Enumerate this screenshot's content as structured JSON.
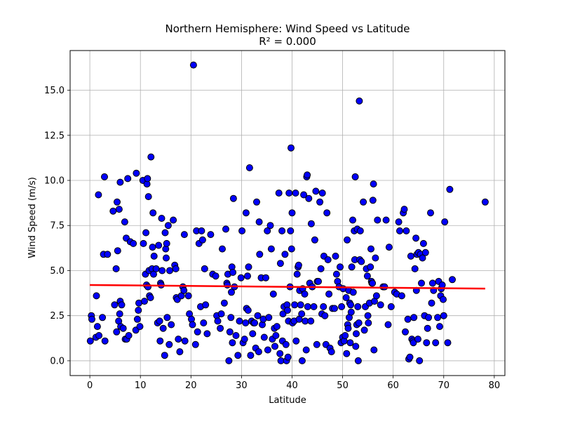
{
  "chart_data": {
    "type": "scatter",
    "title": "Northern Hemisphere: Wind Speed vs Latitude",
    "subtitle": "R² = 0.000",
    "xlabel": "Latitude",
    "ylabel": "Wind Speed (m/s)",
    "xlim": [
      -3.9,
      82.1
    ],
    "ylim": [
      -0.82,
      17.2
    ],
    "xticks": [
      0,
      10,
      20,
      30,
      40,
      50,
      60,
      70,
      80
    ],
    "xtick_labels": [
      "0",
      "10",
      "20",
      "30",
      "40",
      "50",
      "60",
      "70",
      "80"
    ],
    "yticks": [
      0,
      2.5,
      5,
      7.5,
      10,
      12.5,
      15
    ],
    "ytick_labels": [
      "0.0",
      "2.5",
      "5.0",
      "7.5",
      "10.0",
      "12.5",
      "15.0"
    ],
    "grid": true,
    "colors": {
      "marker_fill": "#0000ff",
      "marker_edge": "#000000",
      "regression": "#ff0000",
      "grid": "#b0b0b0"
    },
    "regression": {
      "x": [
        0.0,
        78.2
      ],
      "y": [
        4.2,
        4.0
      ]
    },
    "points": [
      [
        0.1,
        1.1
      ],
      [
        0.3,
        2.5
      ],
      [
        0.4,
        2.3
      ],
      [
        1.2,
        1.3
      ],
      [
        1.3,
        3.6
      ],
      [
        1.5,
        1.9
      ],
      [
        1.7,
        9.2
      ],
      [
        1.8,
        1.4
      ],
      [
        2.5,
        2.4
      ],
      [
        2.7,
        5.9
      ],
      [
        2.9,
        10.2
      ],
      [
        3.0,
        1.1
      ],
      [
        3.5,
        5.9
      ],
      [
        4.6,
        8.3
      ],
      [
        4.9,
        3.1
      ],
      [
        5.2,
        5.1
      ],
      [
        5.3,
        1.6
      ],
      [
        5.4,
        8.8
      ],
      [
        5.5,
        6.1
      ],
      [
        5.7,
        2.2
      ],
      [
        5.8,
        8.4
      ],
      [
        5.9,
        2.6
      ],
      [
        6.0,
        3.3
      ],
      [
        6.0,
        9.9
      ],
      [
        6.1,
        1.9
      ],
      [
        6.3,
        3.1
      ],
      [
        6.6,
        1.8
      ],
      [
        6.9,
        7.7
      ],
      [
        7.0,
        1.2
      ],
      [
        7.2,
        6.8
      ],
      [
        7.3,
        1.2
      ],
      [
        7.5,
        10.1
      ],
      [
        7.7,
        1.4
      ],
      [
        8.0,
        6.6
      ],
      [
        8.6,
        6.5
      ],
      [
        9.1,
        1.7
      ],
      [
        9.2,
        10.4
      ],
      [
        9.4,
        2.3
      ],
      [
        9.6,
        2.8
      ],
      [
        9.7,
        3.2
      ],
      [
        9.9,
        1.9
      ],
      [
        10.5,
        10.0
      ],
      [
        10.6,
        6.5
      ],
      [
        10.8,
        3.3
      ],
      [
        11.0,
        4.8
      ],
      [
        11.1,
        7.1
      ],
      [
        11.2,
        4.2
      ],
      [
        11.3,
        9.8
      ],
      [
        11.4,
        10.1
      ],
      [
        11.5,
        4.1
      ],
      [
        11.6,
        9.1
      ],
      [
        11.7,
        5.0
      ],
      [
        11.8,
        3.6
      ],
      [
        12.0,
        3.5
      ],
      [
        12.1,
        11.3
      ],
      [
        12.3,
        5.1
      ],
      [
        12.4,
        6.3
      ],
      [
        12.5,
        8.2
      ],
      [
        12.6,
        4.8
      ],
      [
        12.7,
        5.8
      ],
      [
        13.1,
        5.1
      ],
      [
        13.4,
        2.1
      ],
      [
        13.6,
        6.4
      ],
      [
        13.8,
        2.2
      ],
      [
        13.9,
        1.1
      ],
      [
        14.0,
        4.3
      ],
      [
        14.1,
        4.2
      ],
      [
        14.2,
        7.9
      ],
      [
        14.3,
        5.0
      ],
      [
        14.5,
        1.8
      ],
      [
        14.8,
        0.3
      ],
      [
        14.9,
        7.1
      ],
      [
        15.0,
        6.2
      ],
      [
        15.1,
        5.7
      ],
      [
        15.2,
        6.5
      ],
      [
        15.3,
        2.4
      ],
      [
        15.5,
        7.5
      ],
      [
        15.7,
        0.9
      ],
      [
        15.8,
        5.0
      ],
      [
        16.1,
        2.0
      ],
      [
        16.5,
        7.8
      ],
      [
        16.8,
        5.3
      ],
      [
        17.0,
        5.1
      ],
      [
        17.1,
        3.5
      ],
      [
        17.3,
        3.4
      ],
      [
        17.5,
        1.2
      ],
      [
        17.8,
        0.5
      ],
      [
        18.1,
        3.6
      ],
      [
        18.4,
        4.1
      ],
      [
        18.6,
        3.9
      ],
      [
        18.7,
        7.0
      ],
      [
        18.8,
        1.1
      ],
      [
        19.5,
        3.6
      ],
      [
        19.7,
        2.6
      ],
      [
        20.1,
        2.3
      ],
      [
        20.3,
        2.0
      ],
      [
        20.5,
        16.4
      ],
      [
        20.9,
        0.9
      ],
      [
        21.1,
        7.2
      ],
      [
        21.3,
        1.6
      ],
      [
        21.6,
        6.5
      ],
      [
        21.9,
        3.0
      ],
      [
        22.1,
        7.2
      ],
      [
        22.3,
        6.7
      ],
      [
        22.5,
        2.1
      ],
      [
        22.7,
        5.1
      ],
      [
        22.9,
        3.1
      ],
      [
        23.2,
        1.5
      ],
      [
        23.9,
        7.0
      ],
      [
        24.3,
        4.8
      ],
      [
        24.9,
        4.7
      ],
      [
        25.1,
        2.5
      ],
      [
        25.3,
        2.2
      ],
      [
        25.8,
        1.8
      ],
      [
        26.0,
        2.6
      ],
      [
        26.2,
        6.2
      ],
      [
        26.6,
        3.2
      ],
      [
        26.9,
        7.3
      ],
      [
        27.1,
        4.3
      ],
      [
        27.2,
        4.2
      ],
      [
        27.3,
        4.8
      ],
      [
        27.5,
        0.0
      ],
      [
        27.7,
        1.6
      ],
      [
        27.9,
        2.4
      ],
      [
        28.0,
        3.8
      ],
      [
        28.1,
        5.2
      ],
      [
        28.2,
        1.0
      ],
      [
        28.3,
        4.9
      ],
      [
        28.4,
        9.0
      ],
      [
        28.6,
        4.1
      ],
      [
        28.9,
        1.4
      ],
      [
        29.3,
        0.3
      ],
      [
        29.6,
        2.2
      ],
      [
        29.9,
        4.6
      ],
      [
        30.1,
        7.2
      ],
      [
        30.3,
        1.0
      ],
      [
        30.6,
        1.2
      ],
      [
        30.8,
        2.1
      ],
      [
        30.9,
        8.2
      ],
      [
        31.0,
        2.9
      ],
      [
        31.2,
        4.7
      ],
      [
        31.3,
        2.8
      ],
      [
        31.4,
        5.2
      ],
      [
        31.6,
        10.7
      ],
      [
        31.8,
        0.3
      ],
      [
        32.0,
        2.2
      ],
      [
        32.2,
        1.5
      ],
      [
        32.4,
        2.1
      ],
      [
        32.6,
        2.1
      ],
      [
        32.8,
        0.7
      ],
      [
        33.0,
        8.8
      ],
      [
        33.2,
        2.5
      ],
      [
        33.4,
        0.5
      ],
      [
        33.5,
        7.7
      ],
      [
        33.6,
        5.9
      ],
      [
        33.9,
        4.6
      ],
      [
        34.1,
        2.0
      ],
      [
        34.3,
        2.3
      ],
      [
        34.5,
        1.3
      ],
      [
        34.8,
        4.6
      ],
      [
        35.1,
        7.2
      ],
      [
        35.2,
        0.6
      ],
      [
        35.4,
        2.4
      ],
      [
        35.7,
        7.5
      ],
      [
        35.9,
        6.2
      ],
      [
        36.1,
        1.2
      ],
      [
        36.3,
        3.7
      ],
      [
        36.5,
        1.8
      ],
      [
        36.6,
        0.8
      ],
      [
        36.8,
        1.4
      ],
      [
        37.0,
        1.9
      ],
      [
        37.4,
        9.3
      ],
      [
        37.6,
        0.4
      ],
      [
        37.7,
        5.4
      ],
      [
        37.8,
        0.0
      ],
      [
        38.0,
        7.2
      ],
      [
        38.1,
        1.1
      ],
      [
        38.2,
        2.6
      ],
      [
        38.4,
        3.0
      ],
      [
        38.6,
        5.9
      ],
      [
        38.8,
        0.9
      ],
      [
        38.9,
        0.0
      ],
      [
        39.0,
        3.1
      ],
      [
        39.1,
        2.8
      ],
      [
        39.2,
        0.2
      ],
      [
        39.3,
        2.2
      ],
      [
        39.4,
        9.3
      ],
      [
        39.6,
        4.1
      ],
      [
        39.7,
        7.2
      ],
      [
        39.8,
        11.8
      ],
      [
        39.9,
        6.2
      ],
      [
        40.0,
        8.2
      ],
      [
        40.1,
        2.1
      ],
      [
        40.4,
        2.2
      ],
      [
        40.5,
        3.1
      ],
      [
        40.7,
        9.3
      ],
      [
        40.8,
        1.1
      ],
      [
        41.0,
        4.8
      ],
      [
        41.2,
        5.2
      ],
      [
        41.3,
        5.3
      ],
      [
        41.4,
        2.3
      ],
      [
        41.5,
        3.9
      ],
      [
        41.7,
        3.1
      ],
      [
        41.9,
        2.6
      ],
      [
        42.0,
        0.0
      ],
      [
        42.1,
        4.0
      ],
      [
        42.3,
        9.2
      ],
      [
        42.5,
        3.7
      ],
      [
        42.6,
        2.2
      ],
      [
        42.8,
        0.6
      ],
      [
        42.9,
        10.2
      ],
      [
        43.0,
        10.3
      ],
      [
        43.1,
        3.0
      ],
      [
        43.3,
        9.0
      ],
      [
        43.5,
        4.3
      ],
      [
        43.7,
        2.2
      ],
      [
        43.8,
        7.6
      ],
      [
        44.0,
        4.1
      ],
      [
        44.3,
        3.0
      ],
      [
        44.5,
        6.7
      ],
      [
        44.7,
        9.4
      ],
      [
        44.9,
        0.9
      ],
      [
        45.0,
        4.4
      ],
      [
        45.2,
        4.4
      ],
      [
        45.5,
        8.8
      ],
      [
        45.7,
        5.1
      ],
      [
        45.9,
        2.6
      ],
      [
        46.0,
        9.3
      ],
      [
        46.2,
        3.0
      ],
      [
        46.3,
        5.8
      ],
      [
        46.5,
        2.5
      ],
      [
        46.7,
        0.9
      ],
      [
        46.9,
        8.2
      ],
      [
        47.1,
        5.6
      ],
      [
        47.3,
        3.7
      ],
      [
        47.5,
        0.7
      ],
      [
        47.8,
        0.5
      ],
      [
        48.0,
        2.9
      ],
      [
        48.4,
        2.9
      ],
      [
        48.6,
        5.8
      ],
      [
        48.8,
        4.8
      ],
      [
        49.0,
        4.4
      ],
      [
        49.3,
        4.1
      ],
      [
        49.5,
        5.2
      ],
      [
        49.7,
        1.0
      ],
      [
        49.8,
        3.0
      ],
      [
        50.0,
        1.3
      ],
      [
        50.1,
        4.0
      ],
      [
        50.3,
        1.1
      ],
      [
        50.5,
        1.4
      ],
      [
        50.7,
        3.5
      ],
      [
        50.8,
        0.4
      ],
      [
        50.9,
        6.7
      ],
      [
        51.0,
        2.0
      ],
      [
        51.1,
        1.8
      ],
      [
        51.2,
        3.9
      ],
      [
        51.3,
        2.4
      ],
      [
        51.4,
        3.2
      ],
      [
        51.5,
        1.0
      ],
      [
        51.6,
        3.1
      ],
      [
        51.7,
        2.7
      ],
      [
        51.8,
        5.2
      ],
      [
        52.0,
        7.8
      ],
      [
        52.1,
        3.8
      ],
      [
        52.3,
        7.2
      ],
      [
        52.4,
        5.6
      ],
      [
        52.5,
        10.2
      ],
      [
        52.6,
        0.8
      ],
      [
        52.7,
        1.5
      ],
      [
        52.8,
        2.0
      ],
      [
        52.9,
        7.3
      ],
      [
        53.0,
        3.0
      ],
      [
        53.1,
        0.0
      ],
      [
        53.2,
        2.1
      ],
      [
        53.3,
        14.4
      ],
      [
        53.4,
        5.6
      ],
      [
        53.5,
        7.2
      ],
      [
        53.7,
        5.5
      ],
      [
        54.1,
        8.8
      ],
      [
        54.3,
        1.7
      ],
      [
        54.5,
        3.0
      ],
      [
        54.7,
        5.1
      ],
      [
        54.9,
        4.7
      ],
      [
        55.0,
        2.5
      ],
      [
        55.1,
        2.1
      ],
      [
        55.3,
        3.2
      ],
      [
        55.5,
        5.2
      ],
      [
        55.6,
        6.2
      ],
      [
        55.7,
        4.4
      ],
      [
        55.8,
        4.3
      ],
      [
        55.9,
        4.3
      ],
      [
        56.0,
        8.9
      ],
      [
        56.1,
        9.8
      ],
      [
        56.2,
        0.6
      ],
      [
        56.3,
        3.3
      ],
      [
        56.5,
        5.7
      ],
      [
        56.7,
        3.6
      ],
      [
        56.9,
        7.8
      ],
      [
        57.5,
        3.1
      ],
      [
        58.0,
        4.1
      ],
      [
        58.3,
        4.1
      ],
      [
        58.6,
        7.8
      ],
      [
        59.0,
        2.0
      ],
      [
        59.2,
        6.3
      ],
      [
        59.6,
        3.0
      ],
      [
        60.3,
        3.8
      ],
      [
        60.7,
        3.7
      ],
      [
        61.1,
        7.7
      ],
      [
        61.3,
        7.2
      ],
      [
        61.7,
        3.6
      ],
      [
        62.0,
        8.2
      ],
      [
        62.2,
        8.4
      ],
      [
        62.4,
        1.6
      ],
      [
        62.6,
        7.2
      ],
      [
        62.9,
        2.3
      ],
      [
        63.1,
        0.1
      ],
      [
        63.3,
        0.2
      ],
      [
        63.5,
        5.8
      ],
      [
        63.7,
        1.2
      ],
      [
        63.9,
        1.1
      ],
      [
        64.0,
        1.0
      ],
      [
        64.1,
        2.4
      ],
      [
        64.3,
        5.1
      ],
      [
        64.5,
        6.8
      ],
      [
        64.6,
        3.9
      ],
      [
        64.7,
        5.9
      ],
      [
        64.9,
        1.2
      ],
      [
        65.0,
        6.0
      ],
      [
        65.2,
        0.0
      ],
      [
        65.4,
        5.9
      ],
      [
        65.6,
        4.3
      ],
      [
        65.8,
        5.7
      ],
      [
        66.0,
        6.5
      ],
      [
        66.2,
        2.5
      ],
      [
        66.4,
        6.0
      ],
      [
        66.6,
        1.0
      ],
      [
        66.8,
        1.8
      ],
      [
        67.0,
        2.4
      ],
      [
        67.4,
        8.2
      ],
      [
        67.6,
        3.2
      ],
      [
        67.8,
        4.3
      ],
      [
        68.0,
        3.9
      ],
      [
        68.4,
        1.0
      ],
      [
        68.8,
        2.4
      ],
      [
        69.0,
        4.4
      ],
      [
        69.2,
        1.9
      ],
      [
        69.4,
        3.6
      ],
      [
        69.5,
        4.0
      ],
      [
        69.7,
        4.2
      ],
      [
        69.9,
        3.4
      ],
      [
        70.0,
        2.5
      ],
      [
        70.2,
        7.7
      ],
      [
        70.8,
        1.0
      ],
      [
        71.2,
        9.5
      ],
      [
        71.7,
        4.5
      ],
      [
        78.2,
        8.8
      ]
    ]
  }
}
